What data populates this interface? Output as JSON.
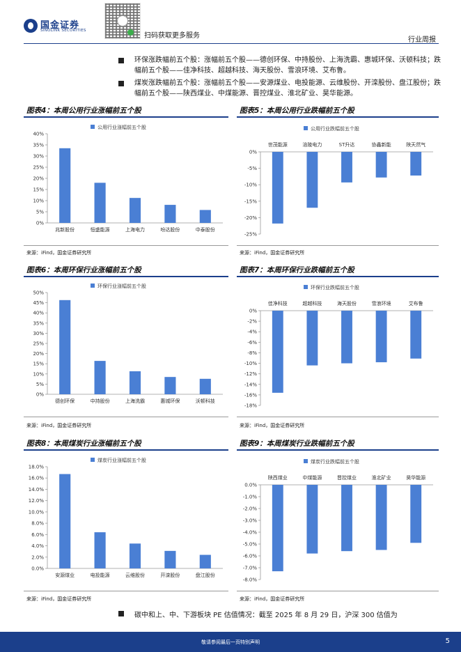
{
  "header": {
    "brand_cn": "国金证券",
    "brand_en": "SINOLINK SECURITIES",
    "scan_prompt": "扫码获取更多服务",
    "doc_type": "行业周报"
  },
  "bullets": [
    {
      "text": "环保涨跌幅前五个股：涨幅前五个股——德创环保、中持股份、上海洗霸、惠城环保、沃顿科技；跌幅前五个股——佳净科技、超越科技、海天股份、雪浪环境、艾布鲁。"
    },
    {
      "text": "煤炭涨跌幅前五个股：涨幅前五个股——安源煤业、电投能源、云维股份、开滦股份、盘江股份；跌幅前五个股——陕西煤业、中煤能源、晋控煤业、淮北矿业、昊华能源。"
    }
  ],
  "charts": [
    {
      "title": "图表4：本周公用行业涨幅前五个股",
      "source": "来源：iFind，国金证券研究所"
    },
    {
      "title": "图表5：本周公用行业跌幅前五个股",
      "source": "来源：iFind，国金证券研究所"
    },
    {
      "title": "图表6：本周环保行业涨幅前五个股",
      "source": "来源：iFind，国金证券研究所"
    },
    {
      "title": "图表7：本周环保行业跌幅前五个股",
      "source": "来源：iFind，国金证券研究所"
    },
    {
      "title": "图表8：本周煤炭行业涨幅前五个股",
      "source": "来源：iFind，国金证券研究所"
    },
    {
      "title": "图表9：本周煤炭行业跌幅前五个股",
      "source": "来源：iFind，国金证券研究所"
    }
  ],
  "chart_data": [
    {
      "type": "bar",
      "series_name": "公用行业涨幅前五个股",
      "categories": [
        "兆新股份",
        "恒盛能源",
        "上海电力",
        "吩达股份",
        "中泰股份"
      ],
      "values": [
        33.5,
        18.0,
        11.2,
        8.1,
        5.8
      ],
      "ylim": [
        0,
        40
      ],
      "ticks": [
        0,
        5,
        10,
        15,
        20,
        25,
        30,
        35,
        40
      ],
      "decimals": 0,
      "legend": "top-left",
      "color": "#4a7fd4"
    },
    {
      "type": "bar",
      "series_name": "公用行业跌幅前五个股",
      "categories": [
        "世茂能源",
        "涪陵电力",
        "ST升达",
        "协鑫新能",
        "陕天然气"
      ],
      "values": [
        -21.8,
        -17.0,
        -9.3,
        -7.8,
        -7.2
      ],
      "ylim": [
        -25,
        0
      ],
      "ticks": [
        0,
        -5,
        -10,
        -15,
        -20,
        -25
      ],
      "decimals": 0,
      "legend": "top-left",
      "color": "#4a7fd4"
    },
    {
      "type": "bar",
      "series_name": "环保行业涨幅前五个股",
      "categories": [
        "德创环保",
        "中持股份",
        "上海洗霸",
        "惠城环保",
        "沃顿科技"
      ],
      "values": [
        46.3,
        16.4,
        11.3,
        8.5,
        7.6
      ],
      "ylim": [
        0,
        50
      ],
      "ticks": [
        0,
        5,
        10,
        15,
        20,
        25,
        30,
        35,
        40,
        45,
        50
      ],
      "decimals": 0,
      "legend": "top-left",
      "color": "#4a7fd4"
    },
    {
      "type": "bar",
      "series_name": "环保行业跌幅前五个股",
      "categories": [
        "佳净科技",
        "超越科技",
        "海天股份",
        "雪浪环境",
        "艾布鲁"
      ],
      "values": [
        -15.6,
        -10.4,
        -10.0,
        -9.8,
        -9.1
      ],
      "ylim": [
        -18,
        0
      ],
      "ticks": [
        0,
        -2,
        -4,
        -6,
        -8,
        -10,
        -12,
        -14,
        -16,
        -18
      ],
      "decimals": 0,
      "legend": "top-left",
      "color": "#4a7fd4"
    },
    {
      "type": "bar",
      "series_name": "煤炭行业涨幅前五个股",
      "categories": [
        "安源煤业",
        "电投能源",
        "云维股份",
        "开滦股份",
        "盘江股份"
      ],
      "values": [
        16.7,
        6.4,
        4.4,
        3.1,
        2.4
      ],
      "ylim": [
        0,
        18
      ],
      "ticks": [
        0,
        2,
        4,
        6,
        8,
        10,
        12,
        14,
        16,
        18
      ],
      "decimals": 1,
      "legend": "top-left",
      "color": "#4a7fd4"
    },
    {
      "type": "bar",
      "series_name": "煤炭行业跌幅前五个股",
      "categories": [
        "陕西煤业",
        "中煤能源",
        "晋控煤业",
        "淮北矿业",
        "昊华能源"
      ],
      "values": [
        -7.3,
        -5.8,
        -5.6,
        -5.5,
        -4.9
      ],
      "ylim": [
        -8,
        0
      ],
      "ticks": [
        0,
        -1,
        -2,
        -3,
        -4,
        -5,
        -6,
        -7,
        -8
      ],
      "decimals": 1,
      "legend": "top-left",
      "color": "#4a7fd4"
    }
  ],
  "bottom_text": "碳中和上、中、下游板块 PE 估值情况：截至 2025 年 8 月 29 日，沪深 300 估值为",
  "footer": {
    "disclaimer": "敬请参阅最后一页特别声明",
    "page": "5"
  }
}
